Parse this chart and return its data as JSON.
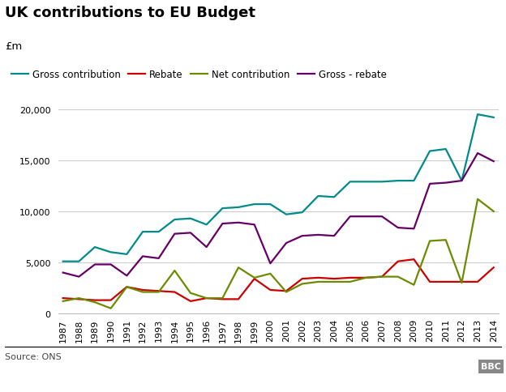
{
  "title": "UK contributions to EU Budget",
  "ylabel": "£m",
  "source": "Source: ONS",
  "years": [
    1987,
    1988,
    1989,
    1990,
    1991,
    1992,
    1993,
    1994,
    1995,
    1996,
    1997,
    1998,
    1999,
    2000,
    2001,
    2002,
    2003,
    2004,
    2005,
    2006,
    2007,
    2008,
    2009,
    2010,
    2011,
    2012,
    2013,
    2014
  ],
  "gross": [
    5100,
    5100,
    6500,
    6000,
    5800,
    8000,
    8000,
    9200,
    9300,
    8700,
    10300,
    10400,
    10700,
    10700,
    9700,
    9900,
    11500,
    11400,
    12900,
    12900,
    12900,
    13000,
    13000,
    15900,
    16100,
    13000,
    19500,
    19200
  ],
  "rebate": [
    1500,
    1400,
    1300,
    1300,
    2600,
    2300,
    2200,
    2100,
    1200,
    1500,
    1400,
    1400,
    3400,
    2300,
    2200,
    3400,
    3500,
    3400,
    3500,
    3500,
    3600,
    5100,
    5300,
    3100,
    3100,
    3100,
    3100,
    4500
  ],
  "net": [
    1200,
    1500,
    1100,
    500,
    2600,
    2100,
    2100,
    4200,
    2000,
    1500,
    1500,
    4500,
    3500,
    3900,
    2100,
    2900,
    3100,
    3100,
    3100,
    3500,
    3600,
    3600,
    2800,
    7100,
    7200,
    3000,
    11200,
    10000
  ],
  "gross_rebate": [
    4000,
    3600,
    4800,
    4800,
    3700,
    5600,
    5400,
    7800,
    7900,
    6500,
    8800,
    8900,
    8700,
    4900,
    6900,
    7600,
    7700,
    7600,
    9500,
    9500,
    9500,
    8400,
    8300,
    12700,
    12800,
    13000,
    15700,
    14900
  ],
  "gross_color": "#008b8b",
  "rebate_color": "#cc0000",
  "net_color": "#6b8c00",
  "gross_rebate_color": "#660066",
  "grid_color": "#cccccc",
  "ylim": [
    0,
    20000
  ],
  "yticks": [
    0,
    5000,
    10000,
    15000,
    20000
  ],
  "title_fontsize": 13,
  "legend_fontsize": 8.5,
  "tick_fontsize": 8,
  "linewidth": 1.6
}
